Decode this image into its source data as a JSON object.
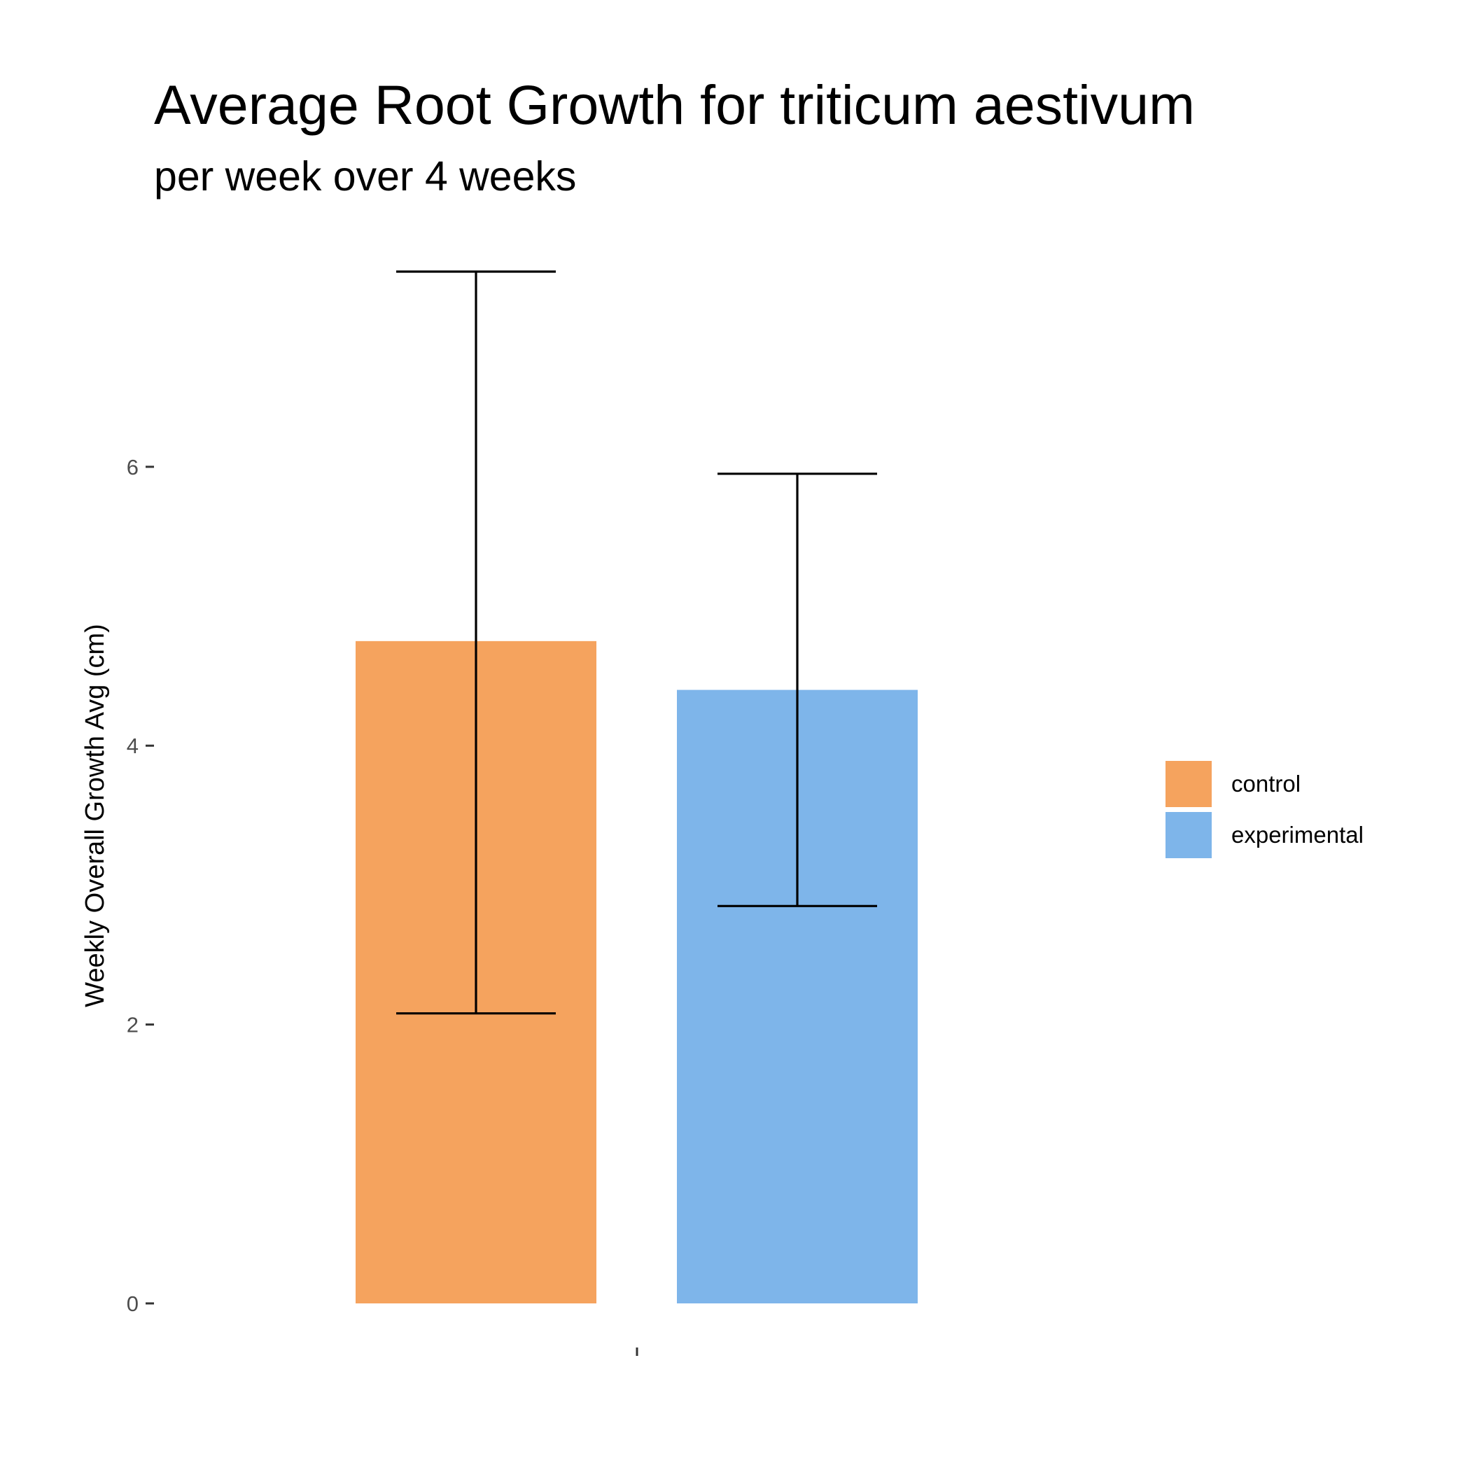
{
  "chart_data": {
    "type": "bar",
    "title": "Average Root Growth for triticum aestivum",
    "subtitle": "per week over 4 weeks",
    "xlabel": "",
    "ylabel": "Weekly Overall Growth Avg (cm)",
    "x_tick_label": "",
    "ylim": [
      0,
      7.4
    ],
    "y_ticks": [
      "0",
      "2",
      "4",
      "6"
    ],
    "y_tick_values": [
      0,
      2,
      4,
      6
    ],
    "grid": false,
    "legend_position": "right",
    "series": [
      {
        "name": "control",
        "value": 4.75,
        "error_low": 2.08,
        "error_high": 7.4,
        "color": "#F5A35E"
      },
      {
        "name": "experimental",
        "value": 4.4,
        "error_low": 2.85,
        "error_high": 5.95,
        "color": "#7EB5EA"
      }
    ]
  }
}
